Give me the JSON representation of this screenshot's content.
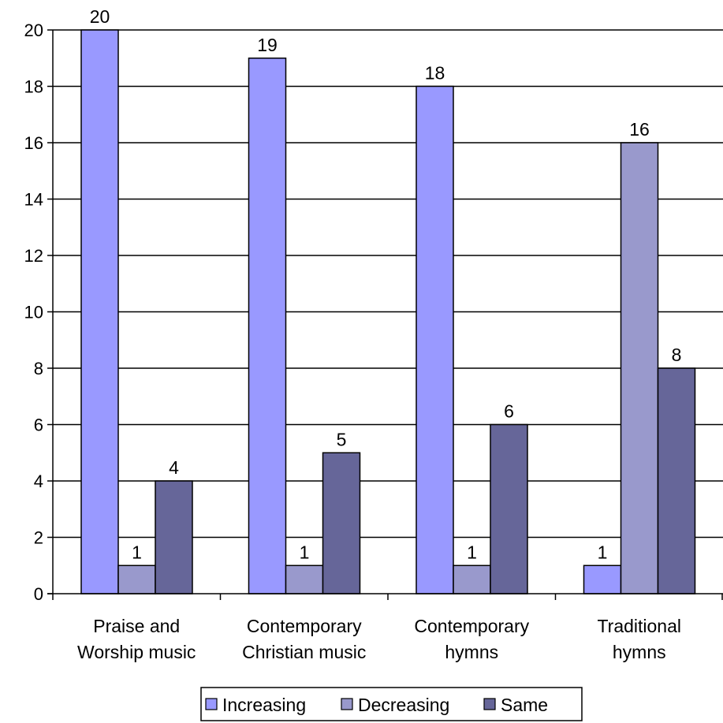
{
  "chart_data": {
    "type": "bar",
    "categories": [
      [
        "Praise and",
        "Worship music"
      ],
      [
        "Contemporary",
        "Christian music"
      ],
      [
        "Contemporary",
        "hymns"
      ],
      [
        "Traditional",
        "hymns"
      ]
    ],
    "series": [
      {
        "name": "Increasing",
        "color": "#9999ff",
        "values": [
          20,
          19,
          18,
          1
        ]
      },
      {
        "name": "Decreasing",
        "color": "#9999cc",
        "values": [
          1,
          1,
          1,
          16
        ]
      },
      {
        "name": "Same",
        "color": "#666699",
        "values": [
          4,
          5,
          6,
          8
        ]
      }
    ],
    "ylim": [
      0,
      20
    ],
    "yticks": [
      0,
      2,
      4,
      6,
      8,
      10,
      12,
      14,
      16,
      18,
      20
    ],
    "grid": true,
    "data_labels": true,
    "legend_position": "bottom"
  }
}
